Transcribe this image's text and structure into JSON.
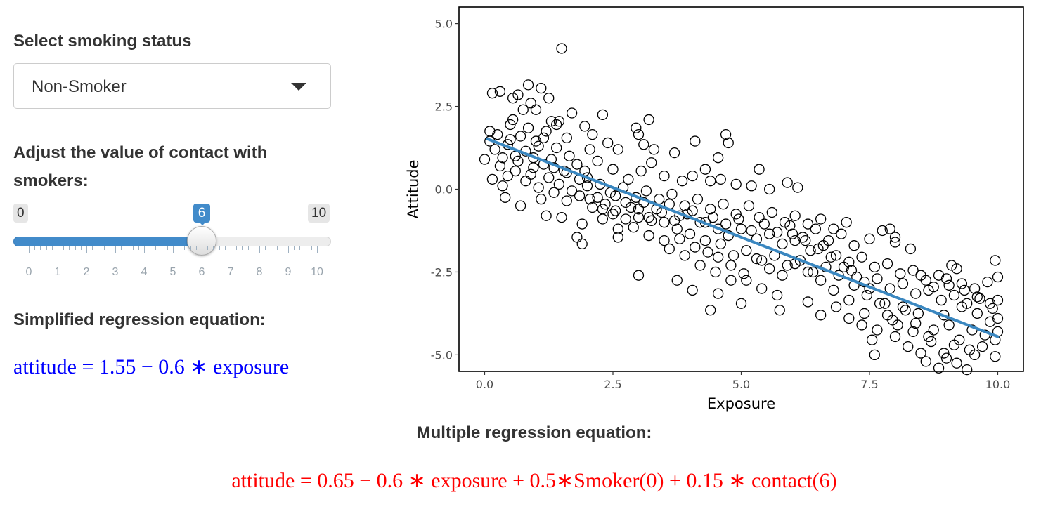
{
  "sidebar": {
    "smoking_label": "Select smoking status",
    "smoking_select": {
      "selected": "Non-Smoker"
    },
    "contact_label": "Adjust the value of contact with smokers:",
    "slider": {
      "min": 0,
      "max": 10,
      "value": 6,
      "min_label": "0",
      "max_label": "10",
      "value_label": "6",
      "tick_labels": [
        "0",
        "1",
        "2",
        "3",
        "4",
        "5",
        "6",
        "7",
        "8",
        "9",
        "10"
      ],
      "accent_color": "#428bca"
    }
  },
  "equations": {
    "simplified_title": "Simplified regression equation:",
    "simplified": "attitude = 1.55 − 0.6 ∗ exposure",
    "simplified_color": "#0000ff",
    "multiple_title": "Multiple regression equation:",
    "multiple": "attitude = 0.65 − 0.6 ∗ exposure + 0.5∗Smoker(0) + 0.15 ∗ contact(6)",
    "multiple_color": "#ff0000"
  },
  "chart_data": {
    "type": "scatter",
    "xlabel": "Exposure",
    "ylabel": "Attitude",
    "xlim": [
      -0.5,
      10.5
    ],
    "ylim": [
      -5.5,
      5.5
    ],
    "xticks": [
      0,
      2.5,
      5,
      7.5,
      10
    ],
    "xtick_labels": [
      "0.0",
      "2.5",
      "5.0",
      "7.5",
      "10.0"
    ],
    "yticks": [
      -5,
      -2.5,
      0,
      2.5,
      5
    ],
    "ytick_labels": [
      "-5.0",
      "-2.5",
      "0.0",
      "2.5",
      "5.0"
    ],
    "grid": false,
    "fit_line": {
      "intercept": 1.55,
      "slope": -0.6,
      "x_range": [
        0.05,
        10
      ],
      "color": "#3a87c0"
    },
    "points": [
      [
        1.5,
        4.25
      ],
      [
        0.85,
        3.15
      ],
      [
        1.1,
        3.05
      ],
      [
        0.15,
        2.9
      ],
      [
        0.3,
        2.95
      ],
      [
        0.55,
        2.75
      ],
      [
        0.65,
        2.85
      ],
      [
        0.9,
        2.6
      ],
      [
        1.25,
        2.75
      ],
      [
        0.75,
        2.4
      ],
      [
        1.0,
        2.4
      ],
      [
        1.7,
        2.3
      ],
      [
        2.3,
        2.25
      ],
      [
        3.2,
        2.1
      ],
      [
        1.3,
        2.05
      ],
      [
        1.45,
        2.05
      ],
      [
        0.1,
        1.75
      ],
      [
        0.25,
        1.65
      ],
      [
        0.5,
        1.95
      ],
      [
        0.45,
        1.35
      ],
      [
        0.8,
        1.15
      ],
      [
        1.05,
        1.3
      ],
      [
        1.6,
        1.55
      ],
      [
        1.95,
        1.9
      ],
      [
        2.1,
        1.65
      ],
      [
        2.05,
        1.2
      ],
      [
        2.4,
        1.4
      ],
      [
        2.6,
        1.2
      ],
      [
        2.95,
        1.85
      ],
      [
        3.0,
        1.65
      ],
      [
        3.1,
        1.35
      ],
      [
        3.3,
        1.2
      ],
      [
        3.7,
        1.1
      ],
      [
        4.1,
        1.45
      ],
      [
        4.7,
        1.65
      ],
      [
        4.75,
        1.4
      ],
      [
        4.55,
        0.95
      ],
      [
        4.3,
        0.6
      ],
      [
        5.35,
        0.6
      ],
      [
        0.0,
        0.9
      ],
      [
        0.3,
        0.7
      ],
      [
        0.6,
        0.55
      ],
      [
        0.95,
        0.65
      ],
      [
        1.3,
        0.9
      ],
      [
        1.55,
        0.55
      ],
      [
        1.8,
        0.75
      ],
      [
        2.0,
        0.35
      ],
      [
        2.2,
        0.85
      ],
      [
        2.5,
        0.6
      ],
      [
        2.8,
        0.3
      ],
      [
        3.05,
        0.55
      ],
      [
        3.25,
        0.8
      ],
      [
        3.5,
        0.4
      ],
      [
        3.85,
        0.25
      ],
      [
        4.05,
        0.4
      ],
      [
        4.4,
        0.25
      ],
      [
        4.6,
        0.3
      ],
      [
        4.9,
        0.15
      ],
      [
        5.2,
        0.1
      ],
      [
        5.55,
        0.0
      ],
      [
        5.9,
        0.2
      ],
      [
        6.1,
        0.05
      ],
      [
        0.35,
        0.1
      ],
      [
        0.4,
        -0.25
      ],
      [
        0.7,
        -0.5
      ],
      [
        1.1,
        -0.3
      ],
      [
        1.35,
        -0.1
      ],
      [
        1.6,
        -0.35
      ],
      [
        1.85,
        -0.2
      ],
      [
        2.1,
        -0.55
      ],
      [
        2.35,
        -0.45
      ],
      [
        2.55,
        -0.65
      ],
      [
        2.75,
        -0.4
      ],
      [
        3.0,
        -0.6
      ],
      [
        3.2,
        -0.85
      ],
      [
        3.45,
        -0.7
      ],
      [
        3.7,
        -0.95
      ],
      [
        3.95,
        -0.75
      ],
      [
        4.2,
        -1.0
      ],
      [
        4.45,
        -0.85
      ],
      [
        4.7,
        -1.05
      ],
      [
        4.95,
        -0.9
      ],
      [
        5.2,
        -1.25
      ],
      [
        5.45,
        -1.05
      ],
      [
        5.7,
        -1.3
      ],
      [
        5.95,
        -1.1
      ],
      [
        6.2,
        -1.45
      ],
      [
        6.45,
        -1.2
      ],
      [
        6.7,
        -1.55
      ],
      [
        6.95,
        -1.35
      ],
      [
        7.2,
        -1.7
      ],
      [
        7.5,
        -1.5
      ],
      [
        7.75,
        -1.25
      ],
      [
        8.0,
        -1.45
      ],
      [
        1.2,
        -0.8
      ],
      [
        1.5,
        -0.85
      ],
      [
        1.9,
        -1.05
      ],
      [
        2.3,
        -0.9
      ],
      [
        2.6,
        -1.2
      ],
      [
        2.9,
        -1.15
      ],
      [
        3.2,
        -1.4
      ],
      [
        3.5,
        -1.55
      ],
      [
        3.8,
        -1.5
      ],
      [
        4.1,
        -1.75
      ],
      [
        4.35,
        -1.9
      ],
      [
        4.6,
        -1.65
      ],
      [
        4.85,
        -2.0
      ],
      [
        5.1,
        -1.85
      ],
      [
        5.4,
        -2.15
      ],
      [
        5.65,
        -2.0
      ],
      [
        5.9,
        -2.3
      ],
      [
        6.15,
        -2.15
      ],
      [
        6.4,
        -2.5
      ],
      [
        6.65,
        -2.35
      ],
      [
        6.9,
        -2.6
      ],
      [
        7.15,
        -2.45
      ],
      [
        7.4,
        -2.8
      ],
      [
        7.65,
        -2.7
      ],
      [
        7.9,
        -3.0
      ],
      [
        8.15,
        -2.85
      ],
      [
        8.4,
        -3.15
      ],
      [
        8.65,
        -3.05
      ],
      [
        8.9,
        -3.35
      ],
      [
        9.15,
        -3.2
      ],
      [
        9.4,
        -3.45
      ],
      [
        9.65,
        -3.3
      ],
      [
        9.9,
        -3.6
      ],
      [
        1.8,
        -1.45
      ],
      [
        1.9,
        -1.65
      ],
      [
        2.6,
        -1.45
      ],
      [
        3.0,
        -2.6
      ],
      [
        3.6,
        -1.8
      ],
      [
        3.9,
        -2.0
      ],
      [
        4.2,
        -2.3
      ],
      [
        4.5,
        -2.5
      ],
      [
        4.8,
        -2.3
      ],
      [
        5.1,
        -2.75
      ],
      [
        5.4,
        -3.0
      ],
      [
        5.7,
        -3.2
      ],
      [
        5.75,
        -3.65
      ],
      [
        5.0,
        -3.45
      ],
      [
        4.55,
        -3.15
      ],
      [
        4.4,
        -3.65
      ],
      [
        4.05,
        -3.05
      ],
      [
        3.75,
        -2.75
      ],
      [
        6.3,
        -3.4
      ],
      [
        6.55,
        -3.8
      ],
      [
        6.85,
        -3.55
      ],
      [
        7.1,
        -3.9
      ],
      [
        7.35,
        -4.1
      ],
      [
        7.55,
        -4.55
      ],
      [
        7.6,
        -5.0
      ],
      [
        8.0,
        -4.45
      ],
      [
        8.25,
        -4.75
      ],
      [
        8.5,
        -4.95
      ],
      [
        8.6,
        -5.2
      ],
      [
        8.85,
        -5.4
      ],
      [
        9.0,
        -5.1
      ],
      [
        9.2,
        -5.25
      ],
      [
        9.4,
        -5.45
      ],
      [
        9.55,
        -5.0
      ],
      [
        9.7,
        -4.75
      ],
      [
        9.95,
        -5.05
      ],
      [
        9.75,
        -4.4
      ],
      [
        9.5,
        -4.25
      ],
      [
        9.25,
        -4.55
      ],
      [
        9.05,
        -4.1
      ],
      [
        8.75,
        -4.25
      ],
      [
        8.45,
        -3.75
      ],
      [
        8.2,
        -3.65
      ],
      [
        7.95,
        -3.95
      ],
      [
        7.7,
        -3.45
      ],
      [
        7.45,
        -3.2
      ],
      [
        7.2,
        -2.9
      ],
      [
        9.1,
        -2.3
      ],
      [
        9.2,
        -2.4
      ],
      [
        9.95,
        -2.15
      ],
      [
        10.0,
        -2.65
      ],
      [
        10.0,
        -3.35
      ],
      [
        10.0,
        -3.9
      ],
      [
        10.0,
        -4.3
      ],
      [
        9.85,
        -4.0
      ],
      [
        9.6,
        -3.75
      ],
      [
        9.3,
        -3.55
      ],
      [
        8.95,
        -3.8
      ],
      [
        8.7,
        -4.6
      ],
      [
        8.35,
        -4.3
      ],
      [
        8.05,
        -4.1
      ],
      [
        7.8,
        -3.45
      ],
      [
        7.5,
        -3.0
      ],
      [
        7.25,
        -2.65
      ],
      [
        7.0,
        -2.35
      ],
      [
        6.75,
        -2.05
      ],
      [
        6.5,
        -1.8
      ],
      [
        6.25,
        -1.55
      ],
      [
        6.0,
        -1.35
      ],
      [
        7.9,
        -1.2
      ],
      [
        8.0,
        -1.6
      ],
      [
        8.3,
        -1.8
      ],
      [
        8.5,
        -2.6
      ],
      [
        8.75,
        -2.95
      ],
      [
        9.0,
        -2.7
      ],
      [
        9.3,
        -2.85
      ],
      [
        9.55,
        -3.0
      ],
      [
        9.8,
        -2.8
      ],
      [
        0.2,
        1.2
      ],
      [
        0.5,
        1.5
      ],
      [
        0.6,
        1.0
      ],
      [
        0.95,
        0.95
      ],
      [
        1.15,
        1.55
      ],
      [
        1.4,
        1.25
      ],
      [
        1.65,
        1.0
      ],
      [
        1.95,
        0.55
      ],
      [
        2.25,
        0.15
      ],
      [
        2.45,
        -0.1
      ],
      [
        2.7,
        0.05
      ],
      [
        2.95,
        -0.25
      ],
      [
        3.15,
        -0.05
      ],
      [
        3.4,
        -0.3
      ],
      [
        3.65,
        -0.15
      ],
      [
        3.9,
        -0.5
      ],
      [
        4.15,
        -0.3
      ],
      [
        4.4,
        -0.6
      ],
      [
        4.65,
        -0.45
      ],
      [
        4.9,
        -0.75
      ],
      [
        5.15,
        -0.5
      ],
      [
        5.35,
        -0.85
      ],
      [
        5.6,
        -0.7
      ],
      [
        5.85,
        -1.0
      ],
      [
        6.05,
        -0.8
      ],
      [
        6.3,
        -1.05
      ],
      [
        6.55,
        -0.9
      ],
      [
        6.8,
        -1.2
      ],
      [
        7.05,
        -1.0
      ],
      [
        0.55,
        2.1
      ],
      [
        0.85,
        1.85
      ],
      [
        1.2,
        1.75
      ],
      [
        1.4,
        1.95
      ],
      [
        0.7,
        1.6
      ],
      [
        1.0,
        1.45
      ],
      [
        0.15,
        0.3
      ],
      [
        0.45,
        0.4
      ],
      [
        0.8,
        0.25
      ],
      [
        1.05,
        0.05
      ],
      [
        1.25,
        0.35
      ],
      [
        1.45,
        0.15
      ],
      [
        1.7,
        -0.05
      ],
      [
        2.0,
        0.1
      ],
      [
        2.2,
        -0.25
      ],
      [
        2.55,
        -0.2
      ],
      [
        2.85,
        -0.55
      ],
      [
        3.1,
        -0.4
      ],
      [
        3.35,
        -0.6
      ],
      [
        3.6,
        -0.45
      ],
      [
        3.8,
        -0.8
      ],
      [
        4.05,
        -0.65
      ],
      [
        4.3,
        -1.0
      ],
      [
        4.55,
        -1.2
      ],
      [
        4.75,
        -1.4
      ],
      [
        5.0,
        -1.2
      ],
      [
        5.3,
        -1.5
      ],
      [
        5.55,
        -1.35
      ],
      [
        5.8,
        -1.65
      ],
      [
        6.05,
        -1.55
      ],
      [
        6.35,
        -1.85
      ],
      [
        6.6,
        -1.7
      ],
      [
        6.85,
        -2.0
      ],
      [
        7.1,
        -2.2
      ],
      [
        7.35,
        -2.05
      ],
      [
        7.6,
        -2.35
      ],
      [
        7.85,
        -2.25
      ],
      [
        8.1,
        -2.55
      ],
      [
        8.35,
        -2.45
      ],
      [
        8.6,
        -2.75
      ],
      [
        8.85,
        -2.6
      ],
      [
        9.05,
        -2.9
      ],
      [
        9.35,
        -3.05
      ],
      [
        9.6,
        -3.25
      ],
      [
        9.85,
        -3.45
      ],
      [
        9.95,
        -4.55
      ],
      [
        9.45,
        -4.85
      ],
      [
        9.15,
        -4.7
      ],
      [
        8.95,
        -4.95
      ],
      [
        8.65,
        -4.45
      ],
      [
        8.4,
        -4.05
      ],
      [
        8.15,
        -3.55
      ],
      [
        7.85,
        -3.8
      ],
      [
        7.65,
        -4.25
      ],
      [
        7.4,
        -3.75
      ],
      [
        7.1,
        -3.35
      ],
      [
        6.8,
        -3.05
      ],
      [
        6.55,
        -2.75
      ],
      [
        6.3,
        -2.5
      ],
      [
        6.05,
        -2.25
      ],
      [
        5.8,
        -2.6
      ],
      [
        5.55,
        -2.4
      ],
      [
        5.3,
        -2.1
      ],
      [
        5.05,
        -2.55
      ],
      [
        4.8,
        -2.75
      ],
      [
        4.55,
        -2.05
      ],
      [
        4.3,
        -1.55
      ],
      [
        4.0,
        -1.35
      ],
      [
        3.75,
        -1.2
      ],
      [
        3.5,
        -1.0
      ],
      [
        3.25,
        -0.95
      ],
      [
        3.0,
        -0.85
      ],
      [
        2.75,
        -0.9
      ],
      [
        2.5,
        -0.75
      ],
      [
        2.3,
        -0.6
      ],
      [
        2.05,
        -0.3
      ],
      [
        1.85,
        0.3
      ],
      [
        1.6,
        0.5
      ],
      [
        1.35,
        0.65
      ],
      [
        1.15,
        0.75
      ],
      [
        0.9,
        0.45
      ],
      [
        0.65,
        0.85
      ],
      [
        0.35,
        0.95
      ],
      [
        0.1,
        1.45
      ]
    ]
  }
}
